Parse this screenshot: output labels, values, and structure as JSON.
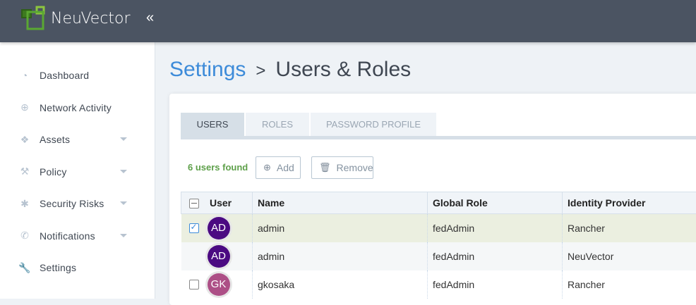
{
  "header": {
    "brand": "NeuVector",
    "collapse_icon": "«"
  },
  "sidebar": {
    "items": [
      {
        "label": "Dashboard",
        "icon": "gauge-icon",
        "glyph": "◔",
        "dropdown": false
      },
      {
        "label": "Network Activity",
        "icon": "globe-icon",
        "glyph": "⊕",
        "dropdown": false
      },
      {
        "label": "Assets",
        "icon": "cubes-icon",
        "glyph": "❖",
        "dropdown": true
      },
      {
        "label": "Policy",
        "icon": "gavel-icon",
        "glyph": "⚒",
        "dropdown": true
      },
      {
        "label": "Security Risks",
        "icon": "bug-icon",
        "glyph": "✱",
        "dropdown": true
      },
      {
        "label": "Notifications",
        "icon": "phone-icon",
        "glyph": "✆",
        "dropdown": true
      },
      {
        "label": "Settings",
        "icon": "wrench-icon",
        "glyph": "🔧",
        "dropdown": false
      }
    ]
  },
  "page": {
    "breadcrumb": "Settings",
    "separator": ">",
    "title": "Users & Roles"
  },
  "tabs": [
    {
      "label": "USERS",
      "active": true
    },
    {
      "label": "ROLES"
    },
    {
      "label": "PASSWORD PROFILE"
    }
  ],
  "toolbar": {
    "count": "6 users found",
    "add": "Add",
    "remove": "Remove"
  },
  "table": {
    "headers": [
      "User",
      "Name",
      "Global Role",
      "Identity Provider"
    ],
    "rows": [
      {
        "initials": "AD",
        "color": "#4b0a82",
        "name": "admin",
        "role": "fedAdmin",
        "provider": "Rancher",
        "checked": true
      },
      {
        "initials": "AD",
        "color": "#4b0a82",
        "name": "admin",
        "role": "fedAdmin",
        "provider": "NeuVector"
      },
      {
        "initials": "GK",
        "color": "#ad4f86",
        "name": "gkosaka",
        "role": "fedAdmin",
        "provider": "Rancher",
        "checked": false
      }
    ]
  },
  "colors": {
    "header": "#4b5462",
    "accent": "#3d8bd9",
    "count": "#5ea04a"
  }
}
